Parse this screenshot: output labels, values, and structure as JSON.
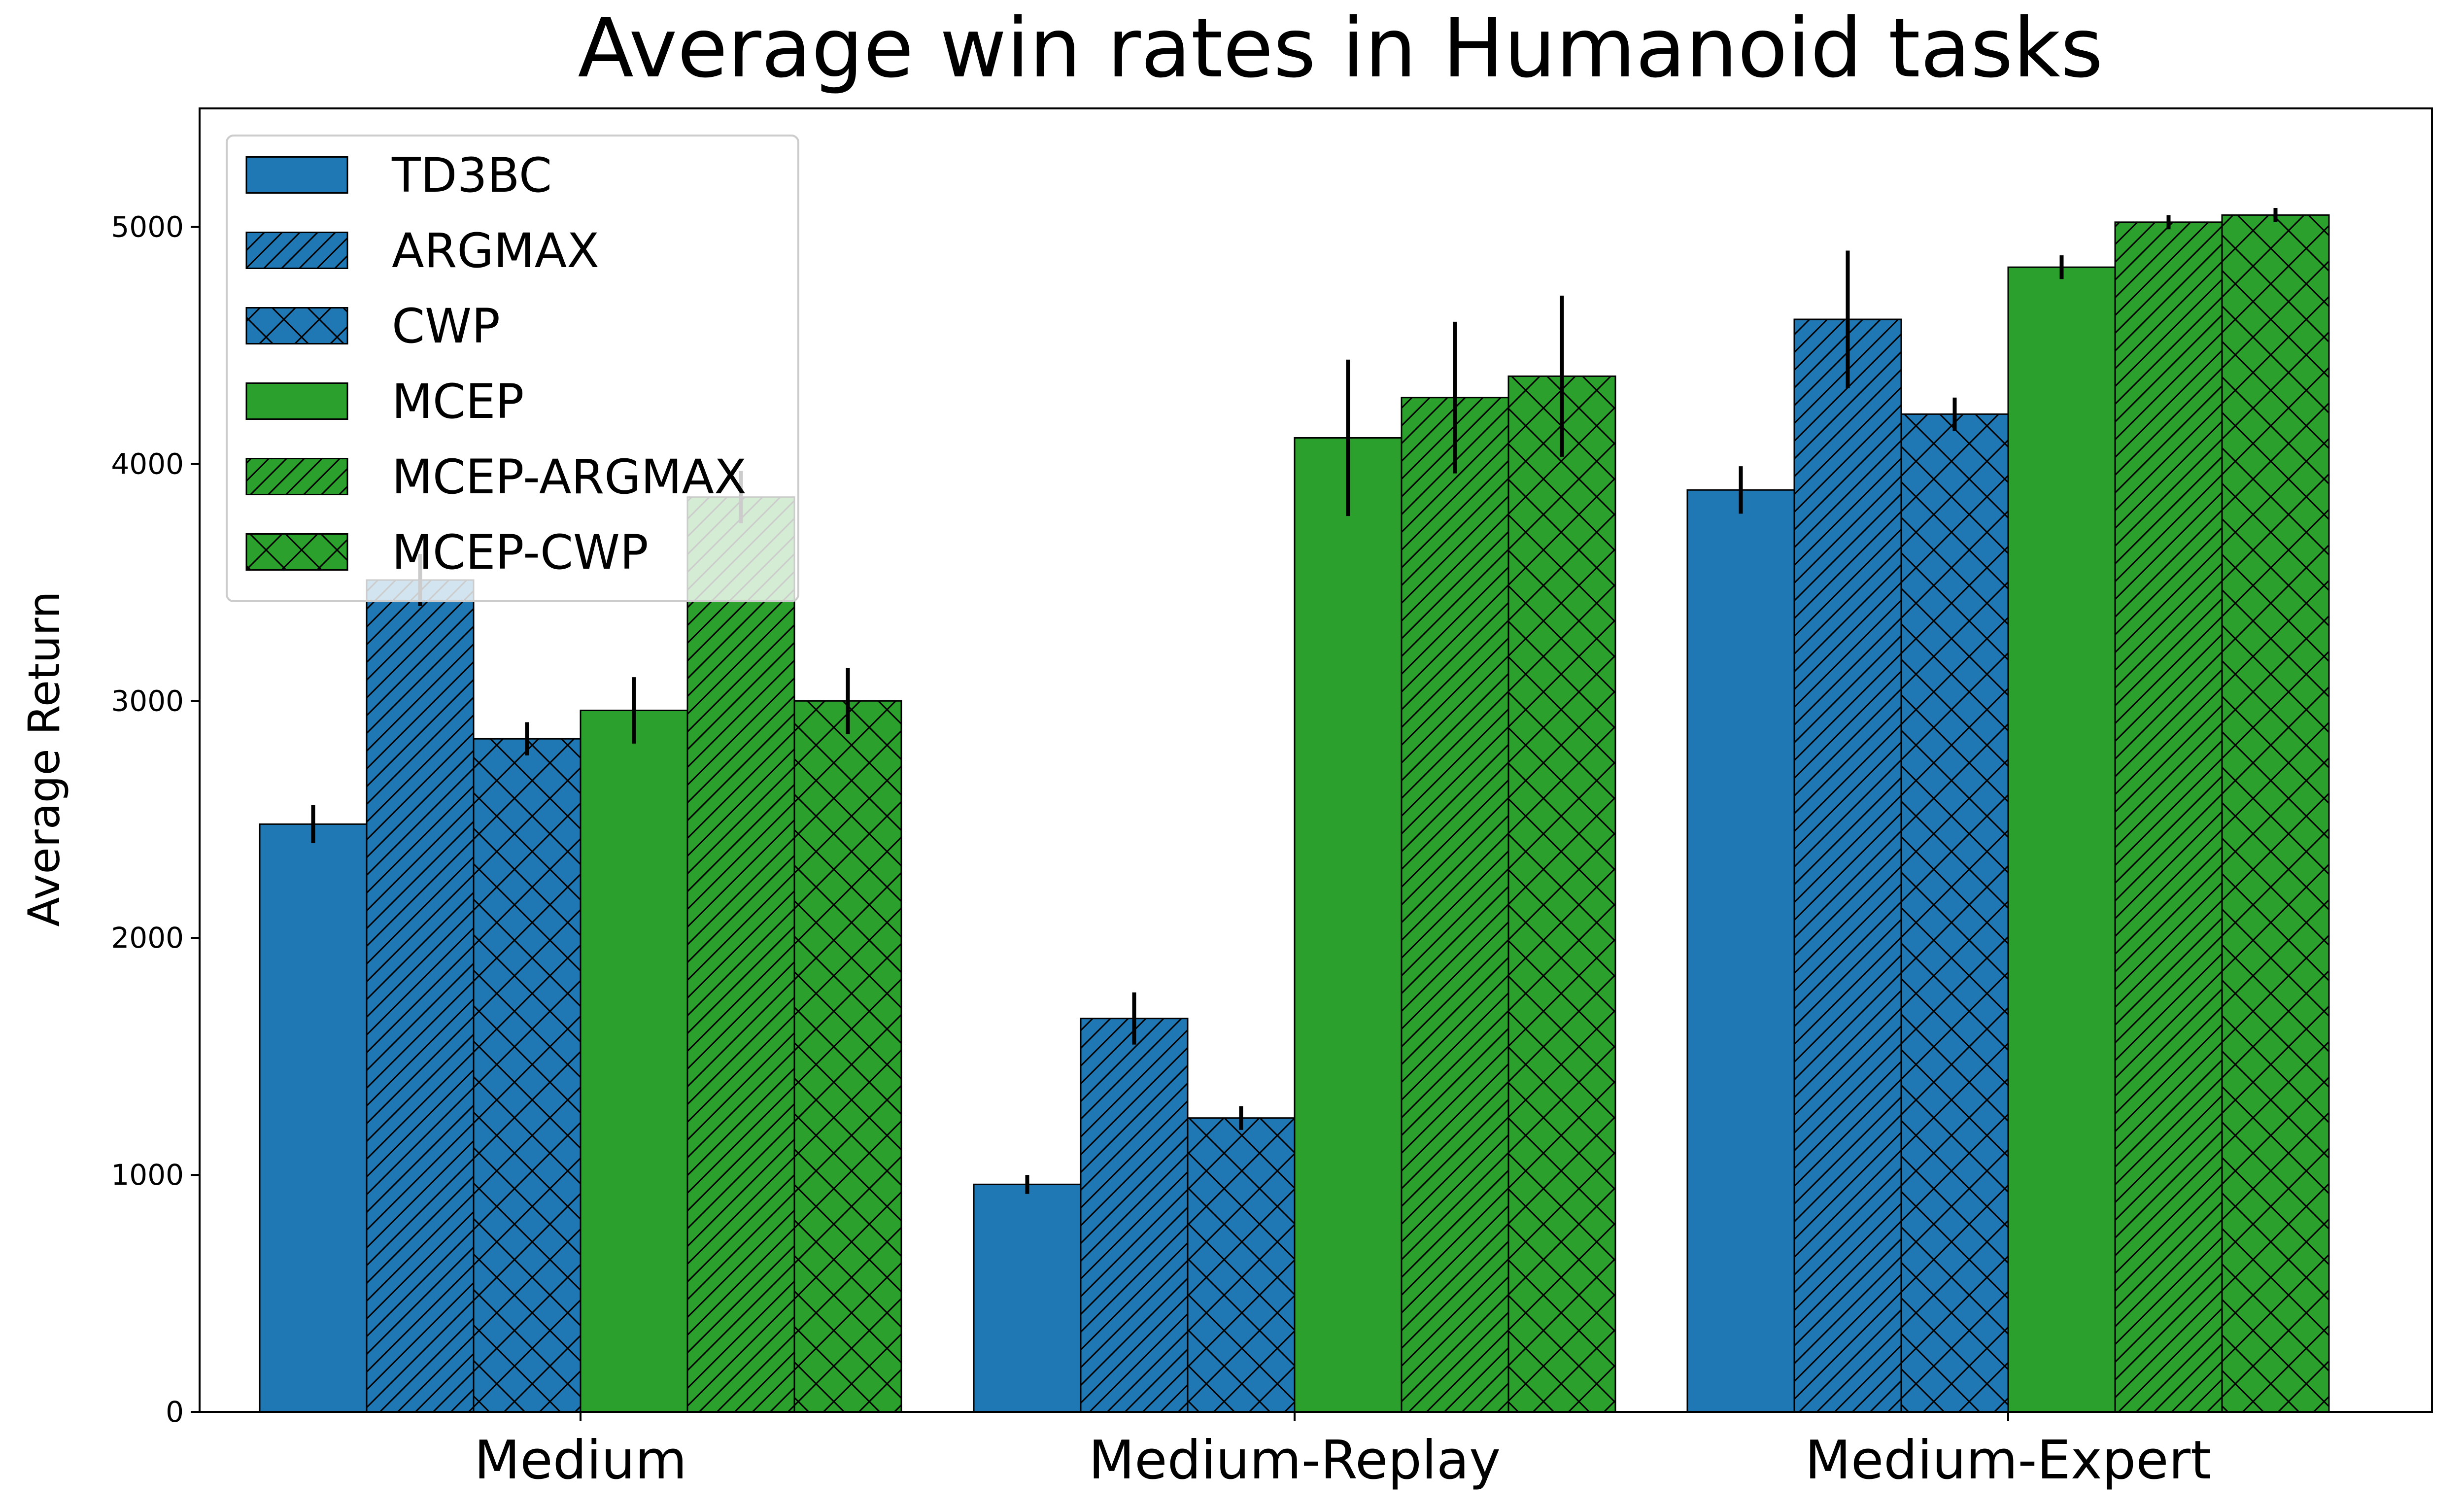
{
  "chart_data": {
    "type": "bar",
    "title": "Average win rates in Humanoid tasks",
    "xlabel": "",
    "ylabel": "Average Return",
    "categories": [
      "Medium",
      "Medium-Replay",
      "Medium-Expert"
    ],
    "ylim": [
      0,
      5500
    ],
    "yticks": [
      0,
      1000,
      2000,
      3000,
      4000,
      5000
    ],
    "ytick_labels": [
      "0",
      "1000",
      "2000",
      "3000",
      "4000",
      "5000"
    ],
    "grid": false,
    "legend_position": "top-left",
    "series": [
      {
        "name": "TD3BC",
        "color": "#1f77b4",
        "hatch": "none",
        "values": [
          2480,
          960,
          3890
        ],
        "errors": [
          80,
          40,
          100
        ]
      },
      {
        "name": "ARGMAX",
        "color": "#1f77b4",
        "hatch": "diagonal",
        "values": [
          3510,
          1660,
          4610
        ],
        "errors": [
          110,
          110,
          290
        ]
      },
      {
        "name": "CWP",
        "color": "#1f77b4",
        "hatch": "cross",
        "values": [
          2840,
          1240,
          4210
        ],
        "errors": [
          70,
          50,
          70
        ]
      },
      {
        "name": "MCEP",
        "color": "#2ca02c",
        "hatch": "none",
        "values": [
          2960,
          4110,
          4830
        ],
        "errors": [
          140,
          330,
          50
        ]
      },
      {
        "name": "MCEP-ARGMAX",
        "color": "#2ca02c",
        "hatch": "diagonal",
        "values": [
          3860,
          4280,
          5020
        ],
        "errors": [
          110,
          320,
          30
        ]
      },
      {
        "name": "MCEP-CWP",
        "color": "#2ca02c",
        "hatch": "cross",
        "values": [
          3000,
          4370,
          5050
        ],
        "errors": [
          140,
          340,
          30
        ]
      }
    ]
  }
}
